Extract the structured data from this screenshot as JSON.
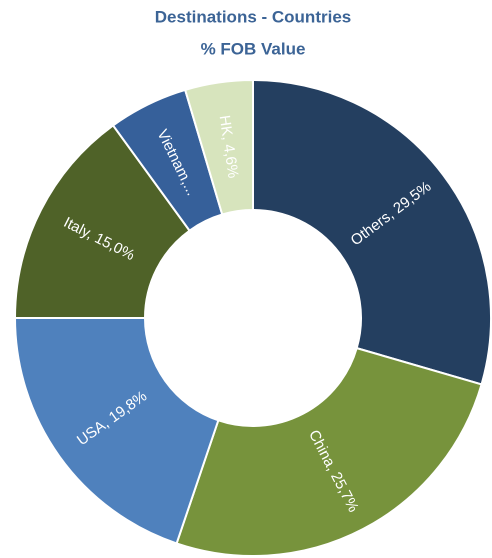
{
  "chart_data": {
    "type": "donut",
    "title": "Destinations - Countries",
    "subtitle": "% FOB Value",
    "labels": [
      "Others, 29,5%",
      "China, 25,7%",
      "USA, 19,8%",
      "Italy, 15,0%",
      "Vietnam,...",
      "HK, 4,6%"
    ],
    "values": [
      29.5,
      25.7,
      19.8,
      15.0,
      5.4,
      4.6
    ],
    "colors": [
      "#243f60",
      "#77933c",
      "#4f81bd",
      "#4f6228",
      "#36609a",
      "#d7e4bd"
    ]
  }
}
